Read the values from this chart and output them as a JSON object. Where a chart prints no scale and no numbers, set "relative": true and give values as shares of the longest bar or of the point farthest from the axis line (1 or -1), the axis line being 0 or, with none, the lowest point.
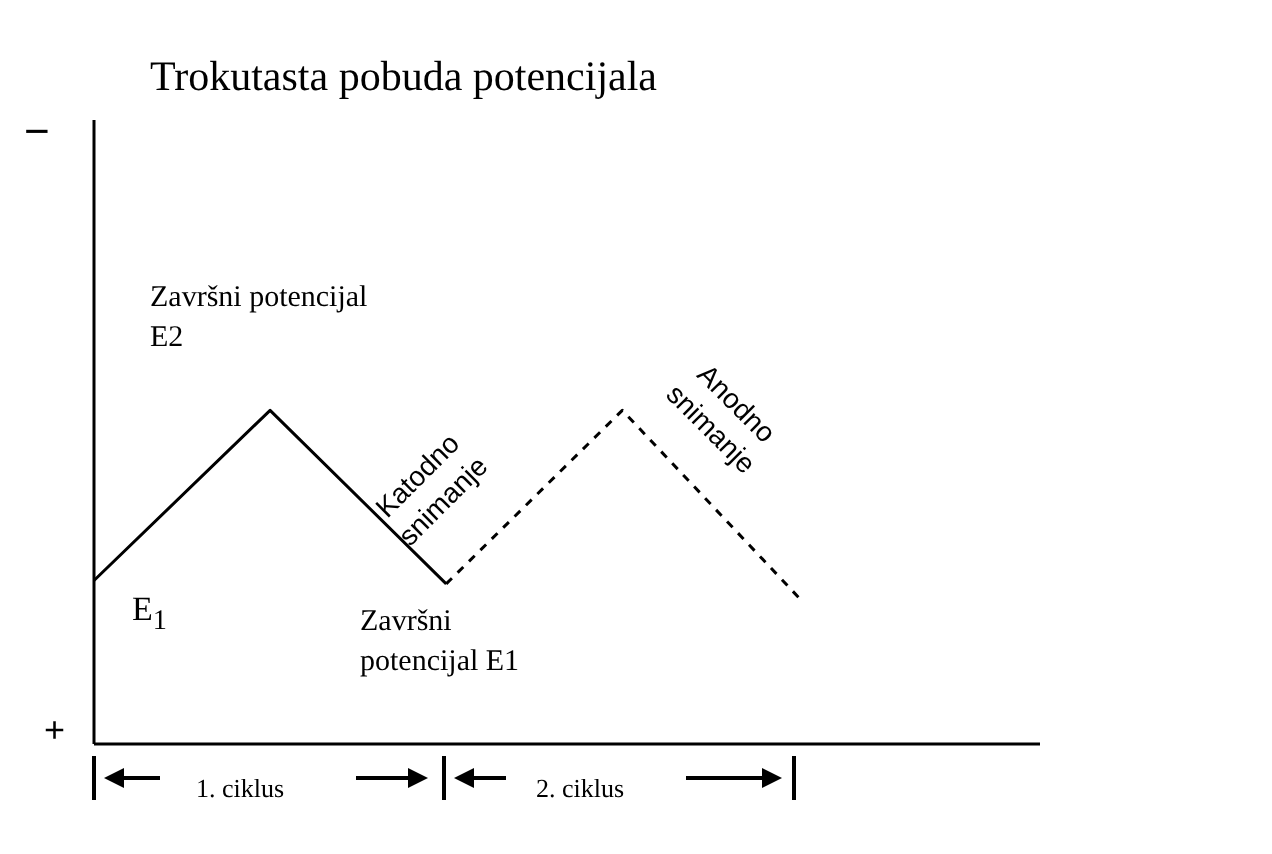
{
  "chart_data": {
    "type": "line",
    "title": "Trokutasta pobuda potencijala",
    "relative": true,
    "marker": "none",
    "categories": [
      null,
      null,
      null,
      null,
      null
    ],
    "series": [
      {
        "color": "#000000",
        "line_style": "solid",
        "values": [
          0.49,
          1,
          0.48,
          null,
          null
        ]
      },
      {
        "color": "#000000",
        "line_style": "dashed",
        "values": [
          null,
          null,
          0.48,
          1,
          0.44
        ]
      }
    ],
    "annotations": [
      "−",
      "+",
      "E$_{1}$",
      "Završni potencijal E2",
      "Katodno snimanje",
      "Anodno snimanje",
      "Završni potencijal E1",
      "1. ciklus",
      "2. ciklus"
    ]
  }
}
